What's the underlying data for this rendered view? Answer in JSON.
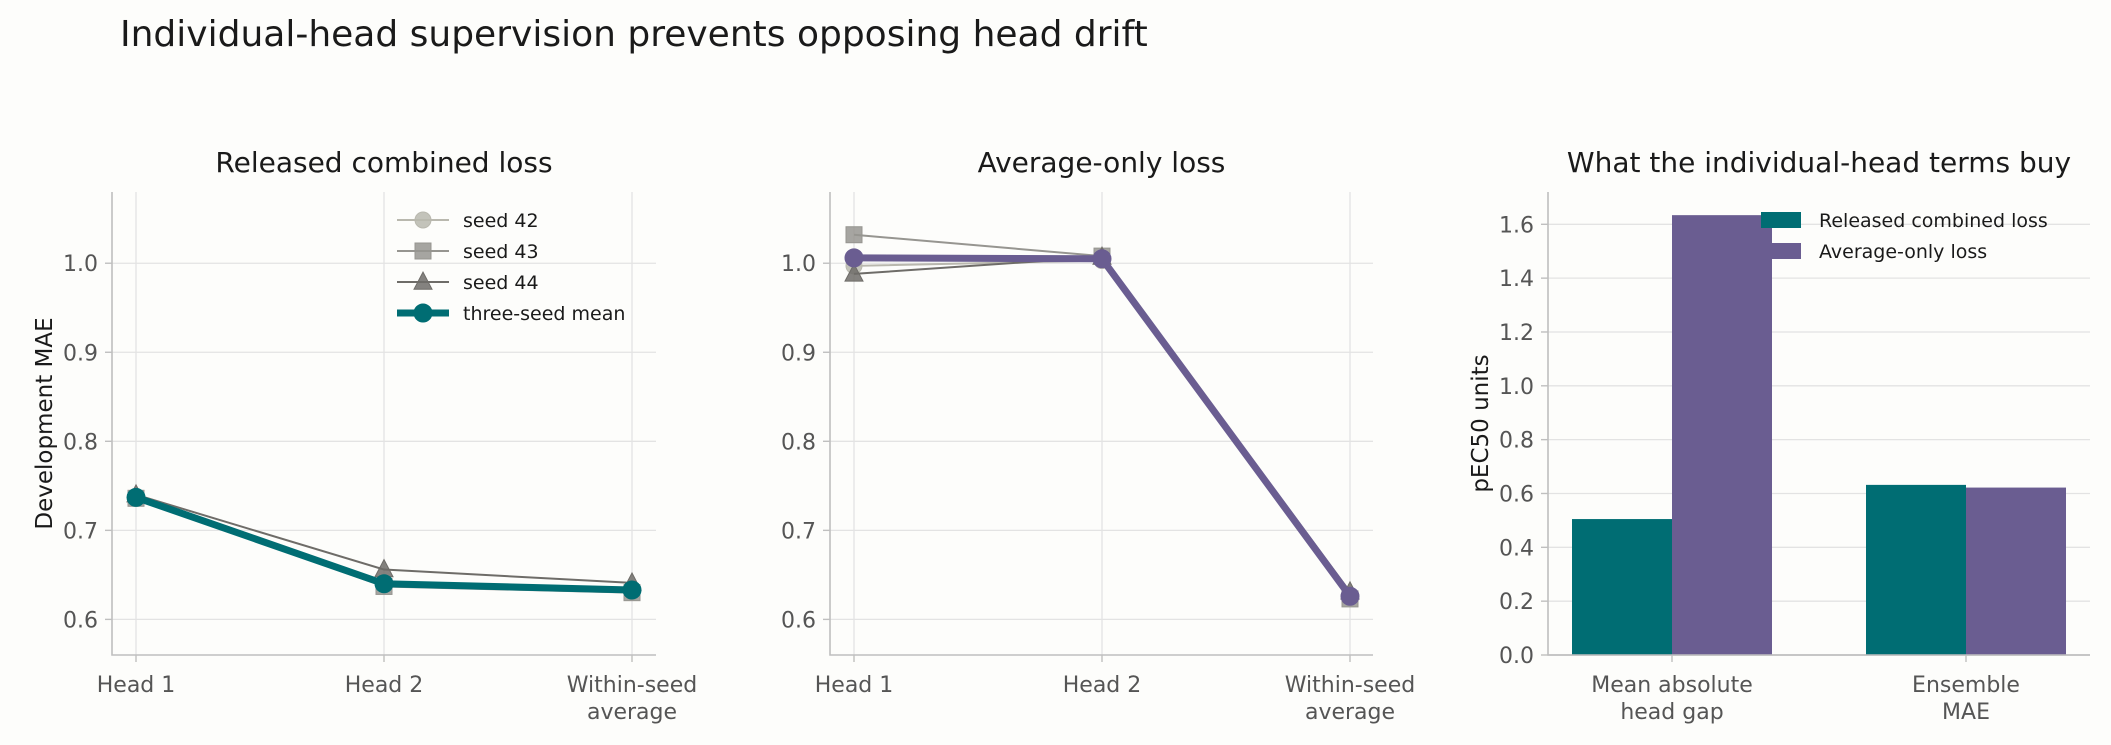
{
  "suptitle": "Individual-head supervision prevents opposing head drift",
  "colors": {
    "teal": "#006d73",
    "purple": "#6a5d91",
    "seed42": "#b9b8ae",
    "seed43": "#969590",
    "seed44": "#6e6c68"
  },
  "chart_data": [
    {
      "type": "line",
      "title": "Released combined loss",
      "ylabel": "Development MAE",
      "xlabel": "",
      "categories": [
        "Head 1",
        "Head 2",
        "Within-seed\naverage"
      ],
      "ylim": [
        0.56,
        1.08
      ],
      "yticks": [
        0.6,
        0.7,
        0.8,
        0.9,
        1.0
      ],
      "legend": "top-right",
      "series": [
        {
          "name": "seed 42",
          "marker": "circle",
          "values": [
            0.738,
            0.639,
            0.631
          ]
        },
        {
          "name": "seed 43",
          "marker": "square",
          "values": [
            0.736,
            0.637,
            0.63
          ]
        },
        {
          "name": "seed 44",
          "marker": "triangle",
          "values": [
            0.74,
            0.656,
            0.641
          ]
        },
        {
          "name": "three-seed mean",
          "marker": "circle",
          "emphasis": true,
          "values": [
            0.737,
            0.64,
            0.633
          ]
        }
      ]
    },
    {
      "type": "line",
      "title": "Average-only loss",
      "ylabel": "",
      "xlabel": "",
      "categories": [
        "Head 1",
        "Head 2",
        "Within-seed\naverage"
      ],
      "ylim": [
        0.56,
        1.08
      ],
      "yticks": [
        0.6,
        0.7,
        0.8,
        0.9,
        1.0
      ],
      "series": [
        {
          "name": "seed 42",
          "marker": "circle",
          "values": [
            0.997,
            1.003,
            0.625
          ]
        },
        {
          "name": "seed 43",
          "marker": "square",
          "values": [
            1.032,
            1.008,
            0.623
          ]
        },
        {
          "name": "seed 44",
          "marker": "triangle",
          "values": [
            0.988,
            1.007,
            0.631
          ]
        },
        {
          "name": "three-seed mean",
          "marker": "circle",
          "emphasis": true,
          "values": [
            1.006,
            1.005,
            0.626
          ]
        }
      ]
    },
    {
      "type": "bar",
      "title": "What the individual-head terms buy",
      "ylabel": "pEC50 units",
      "xlabel": "",
      "categories": [
        "Mean absolute\nhead gap",
        "Ensemble\nMAE"
      ],
      "ylim": [
        0,
        1.72
      ],
      "yticks": [
        0.0,
        0.2,
        0.4,
        0.6,
        0.8,
        1.0,
        1.2,
        1.4,
        1.6
      ],
      "legend": "top-right",
      "series": [
        {
          "name": "Released combined loss",
          "values": [
            0.505,
            0.632
          ]
        },
        {
          "name": "Average-only loss",
          "values": [
            1.634,
            0.622
          ]
        }
      ]
    }
  ]
}
